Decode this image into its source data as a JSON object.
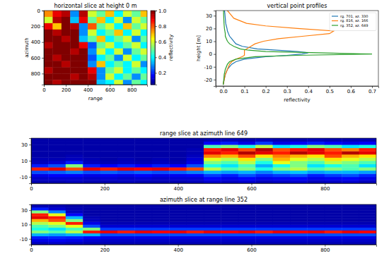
{
  "chart_data": [
    {
      "type": "heatmap",
      "title": "horizontal slice at height 0 m",
      "x_label": "range",
      "y_label": "azimuth",
      "xlim": [
        0,
        940
      ],
      "ylim": [
        940,
        0
      ],
      "xticks": [
        0,
        200,
        400,
        600,
        800
      ],
      "yticks": [
        0,
        200,
        400,
        600,
        800
      ],
      "xbins": [
        0,
        80,
        160,
        240,
        320,
        400,
        480,
        560,
        640,
        720,
        800,
        880,
        940
      ],
      "ybins": [
        0,
        80,
        160,
        240,
        320,
        400,
        480,
        560,
        640,
        720,
        800,
        880,
        940
      ],
      "z": [
        [
          0.75,
          0.9,
          0.95,
          0.3,
          0.95,
          0.6,
          0.5,
          0.7,
          0.4,
          0.6,
          0.5,
          0.7
        ],
        [
          0.6,
          0.95,
          1.0,
          0.35,
          0.9,
          0.5,
          0.7,
          0.4,
          0.6,
          0.3,
          0.6,
          0.5
        ],
        [
          0.9,
          0.7,
          1.0,
          0.95,
          0.3,
          0.8,
          0.5,
          0.6,
          0.4,
          0.7,
          0.5,
          0.6
        ],
        [
          1.0,
          0.95,
          1.0,
          1.0,
          0.3,
          0.6,
          0.4,
          0.5,
          0.7,
          0.4,
          0.6,
          0.4
        ],
        [
          1.0,
          1.0,
          0.95,
          1.0,
          0.35,
          0.5,
          0.7,
          0.4,
          0.5,
          0.6,
          0.3,
          0.5
        ],
        [
          0.95,
          1.0,
          1.0,
          1.0,
          0.9,
          0.25,
          0.5,
          0.6,
          0.4,
          0.5,
          0.6,
          0.4
        ],
        [
          1.0,
          1.0,
          1.0,
          0.95,
          1.0,
          0.3,
          0.6,
          0.4,
          0.6,
          0.3,
          0.5,
          0.6
        ],
        [
          1.0,
          0.95,
          1.0,
          1.0,
          1.0,
          0.25,
          0.4,
          0.5,
          0.3,
          0.6,
          0.4,
          0.5
        ],
        [
          1.0,
          1.0,
          0.95,
          1.0,
          1.0,
          0.3,
          0.7,
          0.4,
          0.5,
          0.4,
          0.6,
          0.3
        ],
        [
          0.95,
          1.0,
          1.0,
          1.0,
          1.0,
          0.9,
          0.3,
          0.5,
          0.6,
          0.4,
          0.5,
          0.4
        ],
        [
          1.0,
          1.0,
          1.0,
          0.95,
          1.0,
          0.95,
          0.3,
          0.6,
          0.4,
          0.5,
          0.3,
          0.5
        ],
        [
          1.0,
          0.95,
          1.0,
          1.0,
          1.0,
          1.0,
          0.35,
          0.4,
          0.6,
          0.3,
          0.5,
          0.4
        ]
      ],
      "colorbar": {
        "label": "reflectivity",
        "zlim": [
          0.05,
          1
        ],
        "zticks": [
          0.2,
          0.4,
          0.6,
          0.8,
          {
            "value": 1,
            "label": "1.0"
          }
        ]
      }
    },
    {
      "type": "line",
      "title": "vertical point profiles",
      "x_label": "reflectivity",
      "y_label": "height [m]",
      "xlim": [
        -0.035,
        0.73
      ],
      "ylim": [
        -25,
        34
      ],
      "xticks": [
        {
          "value": 0,
          "label": "0.0"
        },
        0.1,
        0.2,
        0.3,
        0.4,
        0.5,
        0.6,
        0.7
      ],
      "yticks": [
        -20,
        -10,
        0,
        10,
        20,
        30
      ],
      "legend": "upper right",
      "y": [
        -24,
        -20,
        -16,
        -12,
        -8,
        -6,
        -4,
        -2,
        -1,
        0,
        1,
        2,
        3,
        4,
        6,
        8,
        10,
        12,
        14,
        16,
        18,
        20,
        22,
        24,
        28,
        32,
        34
      ],
      "series": [
        {
          "name": "rg. 701, az. 330",
          "color": "#1f77b4",
          "values": [
            0,
            0.005,
            0.01,
            0.02,
            0.04,
            0.06,
            0.1,
            0.2,
            0.3,
            0.37,
            0.4,
            0.35,
            0.25,
            0.16,
            0.09,
            0.06,
            0.05,
            0.04,
            0.03,
            0.025,
            0.02,
            0.018,
            0.015,
            0.012,
            0.01,
            0.008,
            0.006
          ]
        },
        {
          "name": "rg. 816, az. 166",
          "color": "#ff7f0e",
          "values": [
            0,
            0.005,
            0.01,
            0.02,
            0.03,
            0.04,
            0.06,
            0.09,
            0.1,
            0.1,
            0.1,
            0.1,
            0.1,
            0.11,
            0.13,
            0.15,
            0.19,
            0.26,
            0.38,
            0.5,
            0.52,
            0.35,
            0.2,
            0.11,
            0.05,
            0.03,
            0.02
          ]
        },
        {
          "name": "rg. 352, az. 649",
          "color": "#2ca02c",
          "values": [
            0,
            0.003,
            0.005,
            0.01,
            0.02,
            0.03,
            0.06,
            0.15,
            0.35,
            0.7,
            0.45,
            0.2,
            0.12,
            0.08,
            0.05,
            0.03,
            0.02,
            0.015,
            0.01,
            0.01,
            0.008,
            0.006,
            0.005,
            0.004,
            0.003,
            0.002,
            0.002
          ]
        }
      ]
    },
    {
      "type": "heatmap",
      "title": "range slice at azimuth line 649",
      "xlim": [
        0,
        940
      ],
      "ylim": [
        -18,
        38
      ],
      "xticks": [
        0,
        200,
        400,
        600,
        800
      ],
      "yticks": [
        -10,
        10,
        30
      ],
      "zlim": [
        0,
        1
      ],
      "xbins": [
        0,
        47,
        94,
        141,
        188,
        235,
        282,
        329,
        376,
        423,
        470,
        517,
        564,
        611,
        658,
        705,
        752,
        799,
        846,
        893,
        940
      ],
      "ybins": [
        -18,
        -14,
        -10,
        -6,
        -2,
        2,
        6,
        10,
        14,
        18,
        22,
        26,
        30,
        34,
        38
      ],
      "z": [
        [
          0.05,
          0.05,
          0.06,
          0.05,
          0.05,
          0.06,
          0.05,
          0.05,
          0.05,
          0.06,
          0.08,
          0.07,
          0.08,
          0.06,
          0.07,
          0.08,
          0.06,
          0.07,
          0.08,
          0.06
        ],
        [
          0.07,
          0.08,
          0.08,
          0.07,
          0.08,
          0.07,
          0.08,
          0.07,
          0.08,
          0.08,
          0.12,
          0.1,
          0.12,
          0.1,
          0.11,
          0.12,
          0.1,
          0.11,
          0.12,
          0.1
        ],
        [
          0.1,
          0.12,
          0.12,
          0.1,
          0.11,
          0.1,
          0.12,
          0.1,
          0.11,
          0.12,
          0.18,
          0.15,
          0.2,
          0.16,
          0.18,
          0.2,
          0.15,
          0.18,
          0.2,
          0.16
        ],
        [
          0.2,
          0.22,
          0.25,
          0.2,
          0.22,
          0.2,
          0.22,
          0.2,
          0.22,
          0.25,
          0.3,
          0.28,
          0.3,
          0.25,
          0.3,
          0.32,
          0.28,
          0.3,
          0.3,
          0.28
        ],
        [
          0.85,
          0.9,
          0.8,
          0.9,
          0.85,
          0.9,
          0.88,
          0.9,
          0.85,
          0.8,
          0.55,
          0.45,
          0.5,
          0.4,
          0.5,
          0.55,
          0.45,
          0.5,
          0.45,
          0.5
        ],
        [
          0.15,
          0.2,
          0.5,
          0.15,
          0.12,
          0.15,
          0.12,
          0.15,
          0.12,
          0.2,
          0.4,
          0.35,
          0.45,
          0.3,
          0.4,
          0.5,
          0.35,
          0.4,
          0.45,
          0.35
        ],
        [
          0.06,
          0.08,
          0.15,
          0.06,
          0.05,
          0.06,
          0.05,
          0.06,
          0.05,
          0.1,
          0.5,
          0.45,
          0.55,
          0.4,
          0.6,
          0.5,
          0.45,
          0.55,
          0.5,
          0.45
        ],
        [
          0.05,
          0.05,
          0.06,
          0.05,
          0.04,
          0.05,
          0.04,
          0.05,
          0.04,
          0.08,
          0.6,
          0.55,
          0.65,
          0.5,
          0.7,
          0.6,
          0.55,
          0.65,
          0.6,
          0.55
        ],
        [
          0.04,
          0.04,
          0.05,
          0.04,
          0.04,
          0.04,
          0.04,
          0.04,
          0.04,
          0.06,
          0.75,
          0.7,
          0.8,
          0.65,
          0.75,
          0.7,
          0.65,
          0.8,
          0.7,
          0.65
        ],
        [
          0.04,
          0.04,
          0.04,
          0.04,
          0.04,
          0.04,
          0.04,
          0.04,
          0.04,
          0.05,
          0.9,
          0.85,
          0.95,
          0.9,
          0.85,
          0.95,
          0.9,
          0.85,
          0.95,
          0.9
        ],
        [
          0.04,
          0.04,
          0.04,
          0.04,
          0.04,
          0.04,
          0.04,
          0.04,
          0.04,
          0.05,
          0.85,
          0.9,
          0.8,
          0.95,
          0.8,
          0.85,
          0.9,
          0.8,
          0.75,
          0.85
        ],
        [
          0.04,
          0.04,
          0.04,
          0.04,
          0.04,
          0.04,
          0.04,
          0.04,
          0.04,
          0.04,
          0.45,
          0.5,
          0.4,
          0.55,
          0.35,
          0.4,
          0.5,
          0.45,
          0.35,
          0.4
        ],
        [
          0.04,
          0.04,
          0.04,
          0.04,
          0.04,
          0.04,
          0.04,
          0.04,
          0.04,
          0.04,
          0.12,
          0.15,
          0.1,
          0.18,
          0.1,
          0.12,
          0.15,
          0.12,
          0.1,
          0.12
        ],
        [
          0.04,
          0.04,
          0.04,
          0.04,
          0.04,
          0.04,
          0.04,
          0.04,
          0.04,
          0.04,
          0.05,
          0.06,
          0.05,
          0.06,
          0.05,
          0.05,
          0.06,
          0.05,
          0.05,
          0.05
        ]
      ]
    },
    {
      "type": "heatmap",
      "title": "azimuth slice at range line 352",
      "xlim": [
        0,
        940
      ],
      "ylim": [
        -18,
        38
      ],
      "xticks": [
        0,
        200,
        400,
        600,
        800
      ],
      "yticks": [
        -10,
        10,
        30
      ],
      "zlim": [
        0,
        1
      ],
      "xbins": [
        0,
        47,
        94,
        141,
        188,
        235,
        282,
        329,
        376,
        423,
        470,
        517,
        564,
        611,
        658,
        705,
        752,
        799,
        846,
        893,
        940
      ],
      "ybins": [
        -18,
        -14,
        -10,
        -6,
        -2,
        2,
        6,
        10,
        14,
        18,
        22,
        26,
        30,
        34,
        38
      ],
      "z": [
        [
          0.06,
          0.07,
          0.06,
          0.05,
          0.05,
          0.05,
          0.05,
          0.05,
          0.05,
          0.05,
          0.05,
          0.05,
          0.05,
          0.05,
          0.05,
          0.05,
          0.05,
          0.05,
          0.05,
          0.05
        ],
        [
          0.1,
          0.11,
          0.1,
          0.08,
          0.07,
          0.07,
          0.07,
          0.07,
          0.07,
          0.07,
          0.07,
          0.07,
          0.07,
          0.07,
          0.07,
          0.07,
          0.07,
          0.07,
          0.07,
          0.07
        ],
        [
          0.15,
          0.16,
          0.15,
          0.12,
          0.1,
          0.1,
          0.1,
          0.1,
          0.1,
          0.1,
          0.1,
          0.1,
          0.1,
          0.1,
          0.1,
          0.1,
          0.1,
          0.1,
          0.1,
          0.1
        ],
        [
          0.3,
          0.28,
          0.3,
          0.3,
          0.2,
          0.2,
          0.2,
          0.2,
          0.2,
          0.2,
          0.2,
          0.2,
          0.2,
          0.2,
          0.2,
          0.2,
          0.2,
          0.2,
          0.2,
          0.2
        ],
        [
          0.5,
          0.45,
          0.55,
          0.85,
          0.9,
          0.85,
          0.9,
          0.88,
          0.9,
          0.85,
          0.9,
          0.88,
          0.9,
          0.85,
          0.9,
          0.88,
          0.9,
          0.85,
          0.9,
          0.88
        ],
        [
          0.4,
          0.35,
          0.45,
          0.5,
          0.18,
          0.18,
          0.18,
          0.18,
          0.18,
          0.18,
          0.18,
          0.18,
          0.18,
          0.18,
          0.18,
          0.18,
          0.18,
          0.18,
          0.18,
          0.18
        ],
        [
          0.45,
          0.5,
          0.6,
          0.2,
          0.08,
          0.08,
          0.08,
          0.08,
          0.08,
          0.08,
          0.08,
          0.08,
          0.08,
          0.08,
          0.08,
          0.08,
          0.08,
          0.08,
          0.08,
          0.08
        ],
        [
          0.55,
          0.6,
          0.85,
          0.1,
          0.05,
          0.05,
          0.05,
          0.05,
          0.05,
          0.05,
          0.05,
          0.05,
          0.05,
          0.05,
          0.05,
          0.05,
          0.05,
          0.05,
          0.05,
          0.05
        ],
        [
          0.7,
          0.8,
          0.5,
          0.06,
          0.04,
          0.04,
          0.04,
          0.04,
          0.04,
          0.04,
          0.04,
          0.04,
          0.04,
          0.04,
          0.04,
          0.04,
          0.04,
          0.04,
          0.04,
          0.04
        ],
        [
          0.9,
          0.85,
          0.3,
          0.05,
          0.04,
          0.04,
          0.04,
          0.04,
          0.04,
          0.04,
          0.04,
          0.04,
          0.04,
          0.04,
          0.04,
          0.04,
          0.04,
          0.04,
          0.04,
          0.04
        ],
        [
          0.85,
          0.6,
          0.12,
          0.04,
          0.04,
          0.04,
          0.04,
          0.04,
          0.04,
          0.04,
          0.04,
          0.04,
          0.04,
          0.04,
          0.04,
          0.04,
          0.04,
          0.04,
          0.04,
          0.04
        ],
        [
          0.5,
          0.25,
          0.06,
          0.04,
          0.04,
          0.04,
          0.04,
          0.04,
          0.04,
          0.04,
          0.04,
          0.04,
          0.04,
          0.04,
          0.04,
          0.04,
          0.04,
          0.04,
          0.04,
          0.04
        ],
        [
          0.15,
          0.08,
          0.05,
          0.04,
          0.04,
          0.04,
          0.04,
          0.04,
          0.04,
          0.04,
          0.04,
          0.04,
          0.04,
          0.04,
          0.04,
          0.04,
          0.04,
          0.04,
          0.04,
          0.04
        ],
        [
          0.05,
          0.05,
          0.04,
          0.04,
          0.04,
          0.04,
          0.04,
          0.04,
          0.04,
          0.04,
          0.04,
          0.04,
          0.04,
          0.04,
          0.04,
          0.04,
          0.04,
          0.04,
          0.04,
          0.04
        ]
      ]
    }
  ]
}
